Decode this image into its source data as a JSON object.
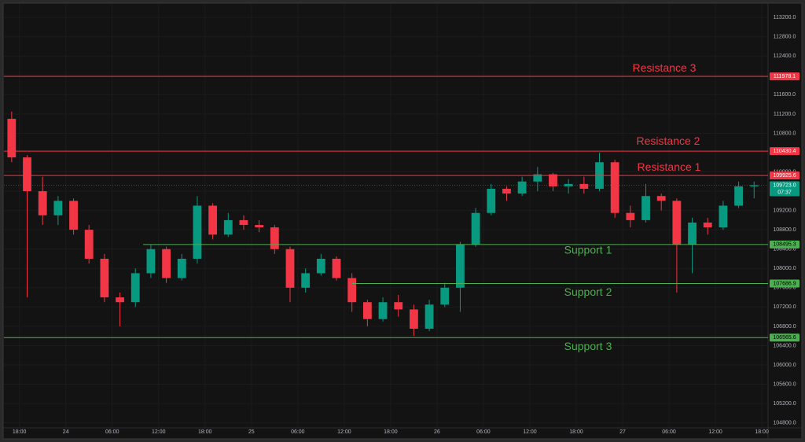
{
  "chart_data": {
    "type": "candlestick",
    "up_color": "#089981",
    "down_color": "#f23645",
    "xlim": [
      -2,
      96.6
    ],
    "ylim": [
      104680,
      113480
    ],
    "xticks": [
      {
        "value": 0,
        "label": "18:00"
      },
      {
        "value": 6,
        "label": "24"
      },
      {
        "value": 12,
        "label": "06:00"
      },
      {
        "value": 18,
        "label": "12:00"
      },
      {
        "value": 24,
        "label": "18:00"
      },
      {
        "value": 30,
        "label": "25"
      },
      {
        "value": 36,
        "label": "06:00"
      },
      {
        "value": 42,
        "label": "12:00"
      },
      {
        "value": 48,
        "label": "18:00"
      },
      {
        "value": 54,
        "label": "26"
      },
      {
        "value": 60,
        "label": "06:00"
      },
      {
        "value": 66,
        "label": "12:00"
      },
      {
        "value": 72,
        "label": "18:00"
      },
      {
        "value": 78,
        "label": "27"
      },
      {
        "value": 84,
        "label": "06:00"
      },
      {
        "value": 90,
        "label": "12:00"
      },
      {
        "value": 96,
        "label": "18:00"
      }
    ],
    "yticks": [
      {
        "value": 104800,
        "label": "104800.0"
      },
      {
        "value": 105200,
        "label": "105200.0"
      },
      {
        "value": 105600,
        "label": "105600.0"
      },
      {
        "value": 106000,
        "label": "106000.0"
      },
      {
        "value": 106400,
        "label": "106400.0"
      },
      {
        "value": 106800,
        "label": "106800.0"
      },
      {
        "value": 107200,
        "label": "107200.0"
      },
      {
        "value": 107600,
        "label": "107600.0"
      },
      {
        "value": 108000,
        "label": "108000.0"
      },
      {
        "value": 108400,
        "label": "108400.0"
      },
      {
        "value": 108800,
        "label": "108800.0"
      },
      {
        "value": 109200,
        "label": "109200.0"
      },
      {
        "value": 109600,
        "label": "109600.0"
      },
      {
        "value": 110000,
        "label": "110000.0"
      },
      {
        "value": 110400,
        "label": "110400.0"
      },
      {
        "value": 110800,
        "label": "110800.0"
      },
      {
        "value": 111200,
        "label": "111200.0"
      },
      {
        "value": 111600,
        "label": "111600.0"
      },
      {
        "value": 112000,
        "label": "112000.0"
      },
      {
        "value": 112400,
        "label": "112400.0"
      },
      {
        "value": 112800,
        "label": "112800.0"
      },
      {
        "value": 113200,
        "label": "113200.0"
      }
    ],
    "grid": true,
    "x": [
      -1,
      1,
      3,
      5,
      7,
      9,
      11,
      13,
      15,
      17,
      19,
      21,
      23,
      25,
      27,
      29,
      31,
      33,
      35,
      37,
      39,
      41,
      43,
      45,
      47,
      49,
      51,
      53,
      55,
      57,
      59,
      61,
      63,
      65,
      67,
      69,
      71,
      73,
      75,
      77,
      79,
      81,
      83,
      85,
      87,
      89,
      91,
      93,
      95
    ],
    "open": [
      111100,
      110300,
      109600,
      109100,
      109400,
      108800,
      108200,
      107400,
      107300,
      107900,
      108400,
      107800,
      108200,
      109300,
      108700,
      109000,
      108900,
      108850,
      108400,
      107600,
      107900,
      108200,
      107800,
      107300,
      106950,
      107300,
      107150,
      106750,
      107250,
      107600,
      108500,
      109150,
      109650,
      109550,
      109800,
      109950,
      109700,
      109750,
      109650,
      110200,
      109150,
      109000,
      109500,
      109400,
      108500,
      108950,
      108850,
      109300,
      109700
    ],
    "high": [
      111250,
      110350,
      109900,
      109500,
      109450,
      108900,
      108300,
      107500,
      108000,
      108500,
      108450,
      108300,
      109500,
      109350,
      109150,
      109100,
      109000,
      108900,
      108450,
      108000,
      108300,
      108250,
      107900,
      107350,
      107400,
      107450,
      107250,
      107350,
      107700,
      108550,
      109250,
      109750,
      109700,
      109900,
      110100,
      109980,
      109850,
      109900,
      110400,
      110250,
      109300,
      109750,
      109550,
      109450,
      109050,
      109050,
      109400,
      109800,
      109800
    ],
    "low": [
      110200,
      107400,
      108900,
      108900,
      108700,
      108100,
      107300,
      106800,
      107200,
      107800,
      107700,
      107750,
      108100,
      108600,
      108650,
      108800,
      108750,
      108300,
      107300,
      107500,
      107850,
      107750,
      107100,
      106800,
      106900,
      107000,
      106600,
      106700,
      107200,
      107100,
      108450,
      109100,
      109400,
      109500,
      109600,
      109600,
      109550,
      109550,
      109600,
      109050,
      108850,
      108950,
      109200,
      107500,
      107900,
      108700,
      108800,
      109250,
      109450
    ],
    "close": [
      110300,
      109600,
      109100,
      109400,
      108800,
      108200,
      107400,
      107300,
      107900,
      108400,
      107800,
      108200,
      109300,
      108700,
      109000,
      108900,
      108850,
      108400,
      107600,
      107900,
      108200,
      107800,
      107300,
      106950,
      107300,
      107150,
      106750,
      107250,
      107600,
      108500,
      109150,
      109650,
      109550,
      109800,
      109950,
      109700,
      109750,
      109650,
      110200,
      109150,
      109000,
      109500,
      109400,
      108500,
      108950,
      108850,
      109300,
      109700,
      109723
    ],
    "levels": [
      {
        "name": "Resistance 3",
        "value": 111978.1,
        "start": -2,
        "color": "#f23645"
      },
      {
        "name": "Resistance 2",
        "value": 110430.4,
        "start": -2,
        "color": "#f23645"
      },
      {
        "name": "Resistance 1",
        "value": 109925.6,
        "start": -2,
        "color": "#f23645"
      },
      {
        "name": "Support 1",
        "value": 108495.3,
        "start": 16,
        "color": "#4caf50"
      },
      {
        "name": "Support 2",
        "value": 107686.9,
        "start": 43,
        "color": "#4caf50"
      },
      {
        "name": "Support 3",
        "value": 106565.6,
        "start": -2,
        "color": "#4caf50"
      }
    ],
    "last_price": {
      "value": 109723,
      "label": "109723.0",
      "countdown": "07:37",
      "color": "#089981"
    }
  }
}
